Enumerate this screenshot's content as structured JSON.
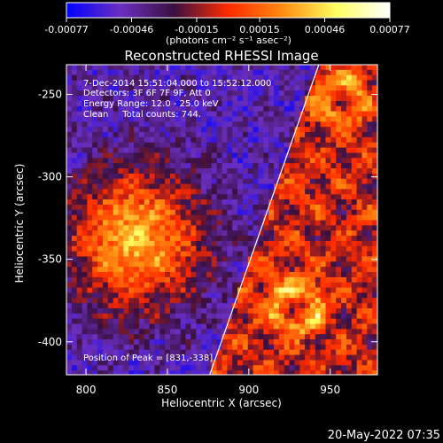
{
  "colorbar": {
    "tick_labels": [
      "-0.00077",
      "-0.00046",
      "-0.00015",
      "0.00015",
      "0.00046",
      "0.00077"
    ],
    "tick_values": [
      -0.00077,
      -0.00046,
      -0.00015,
      0.00015,
      0.00046,
      0.00077
    ],
    "unit_label": "(photons cm⁻² s⁻¹ asec⁻²)",
    "colormap": [
      "#0000ff",
      "#6b2fc0",
      "#3a1040",
      "#ff2a00",
      "#ff8a10",
      "#ffff60",
      "#ffffff"
    ]
  },
  "chart_data": {
    "type": "heatmap",
    "title": "Reconstructed RHESSI Image",
    "xlabel": "Heliocentric X (arcsec)",
    "ylabel": "Heliocentric Y (arcsec)",
    "xlim": [
      788,
      979
    ],
    "ylim": [
      -420,
      -232
    ],
    "xticks": [
      800,
      850,
      900,
      950
    ],
    "yticks": [
      -250,
      -300,
      -350,
      -400
    ],
    "annotations": [
      "7-Dec-2014 15:51:04.000 to 15:52:12.000",
      "Detectors: 3F 6F 7F 9F, Att 0",
      "Energy Range: 12.0 - 25.0 keV",
      "Clean     Total counts: 744."
    ],
    "peak_label": "Position of Peak = [831,-338]",
    "peak_position": [
      831,
      -338
    ],
    "limb_line": {
      "x1": 876,
      "y1": -420,
      "x2": 943,
      "y2": -232
    }
  },
  "footer": {
    "timestamp": "20-May-2022 07:35"
  }
}
